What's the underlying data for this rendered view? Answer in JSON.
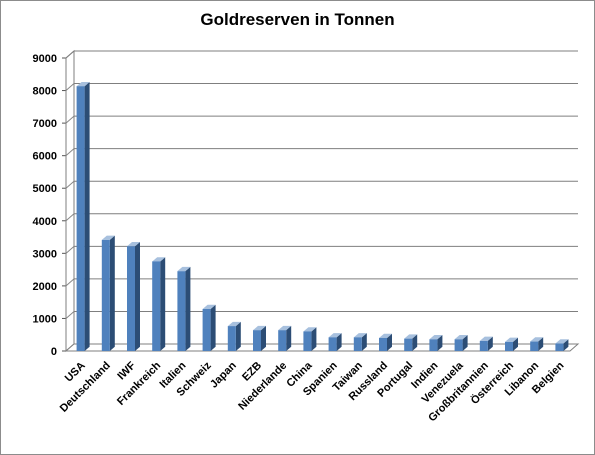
{
  "chart_data": {
    "type": "bar",
    "title": "Goldreserven in Tonnen",
    "xlabel": "",
    "ylabel": "",
    "ylim": [
      0,
      9000
    ],
    "yticks": [
      0,
      1000,
      2000,
      3000,
      4000,
      5000,
      6000,
      7000,
      8000,
      9000
    ],
    "grid": true,
    "legend": "none",
    "bar_color": "#4f81bd",
    "categories": [
      "USA",
      "Deutschland",
      "IWF",
      "Frankreich",
      "Italien",
      "Schweiz",
      "Japan",
      "EZB",
      "Niederlande",
      "China",
      "Spanien",
      "Taiwan",
      "Russland",
      "Portugal",
      "Indien",
      "Venezuela",
      "Großbritannien",
      "Österreich",
      "Libanon",
      "Belgien"
    ],
    "values": [
      8134,
      3412,
      3217,
      2751,
      2452,
      1290,
      765,
      640,
      640,
      600,
      420,
      420,
      400,
      380,
      360,
      360,
      310,
      280,
      290,
      230
    ]
  }
}
